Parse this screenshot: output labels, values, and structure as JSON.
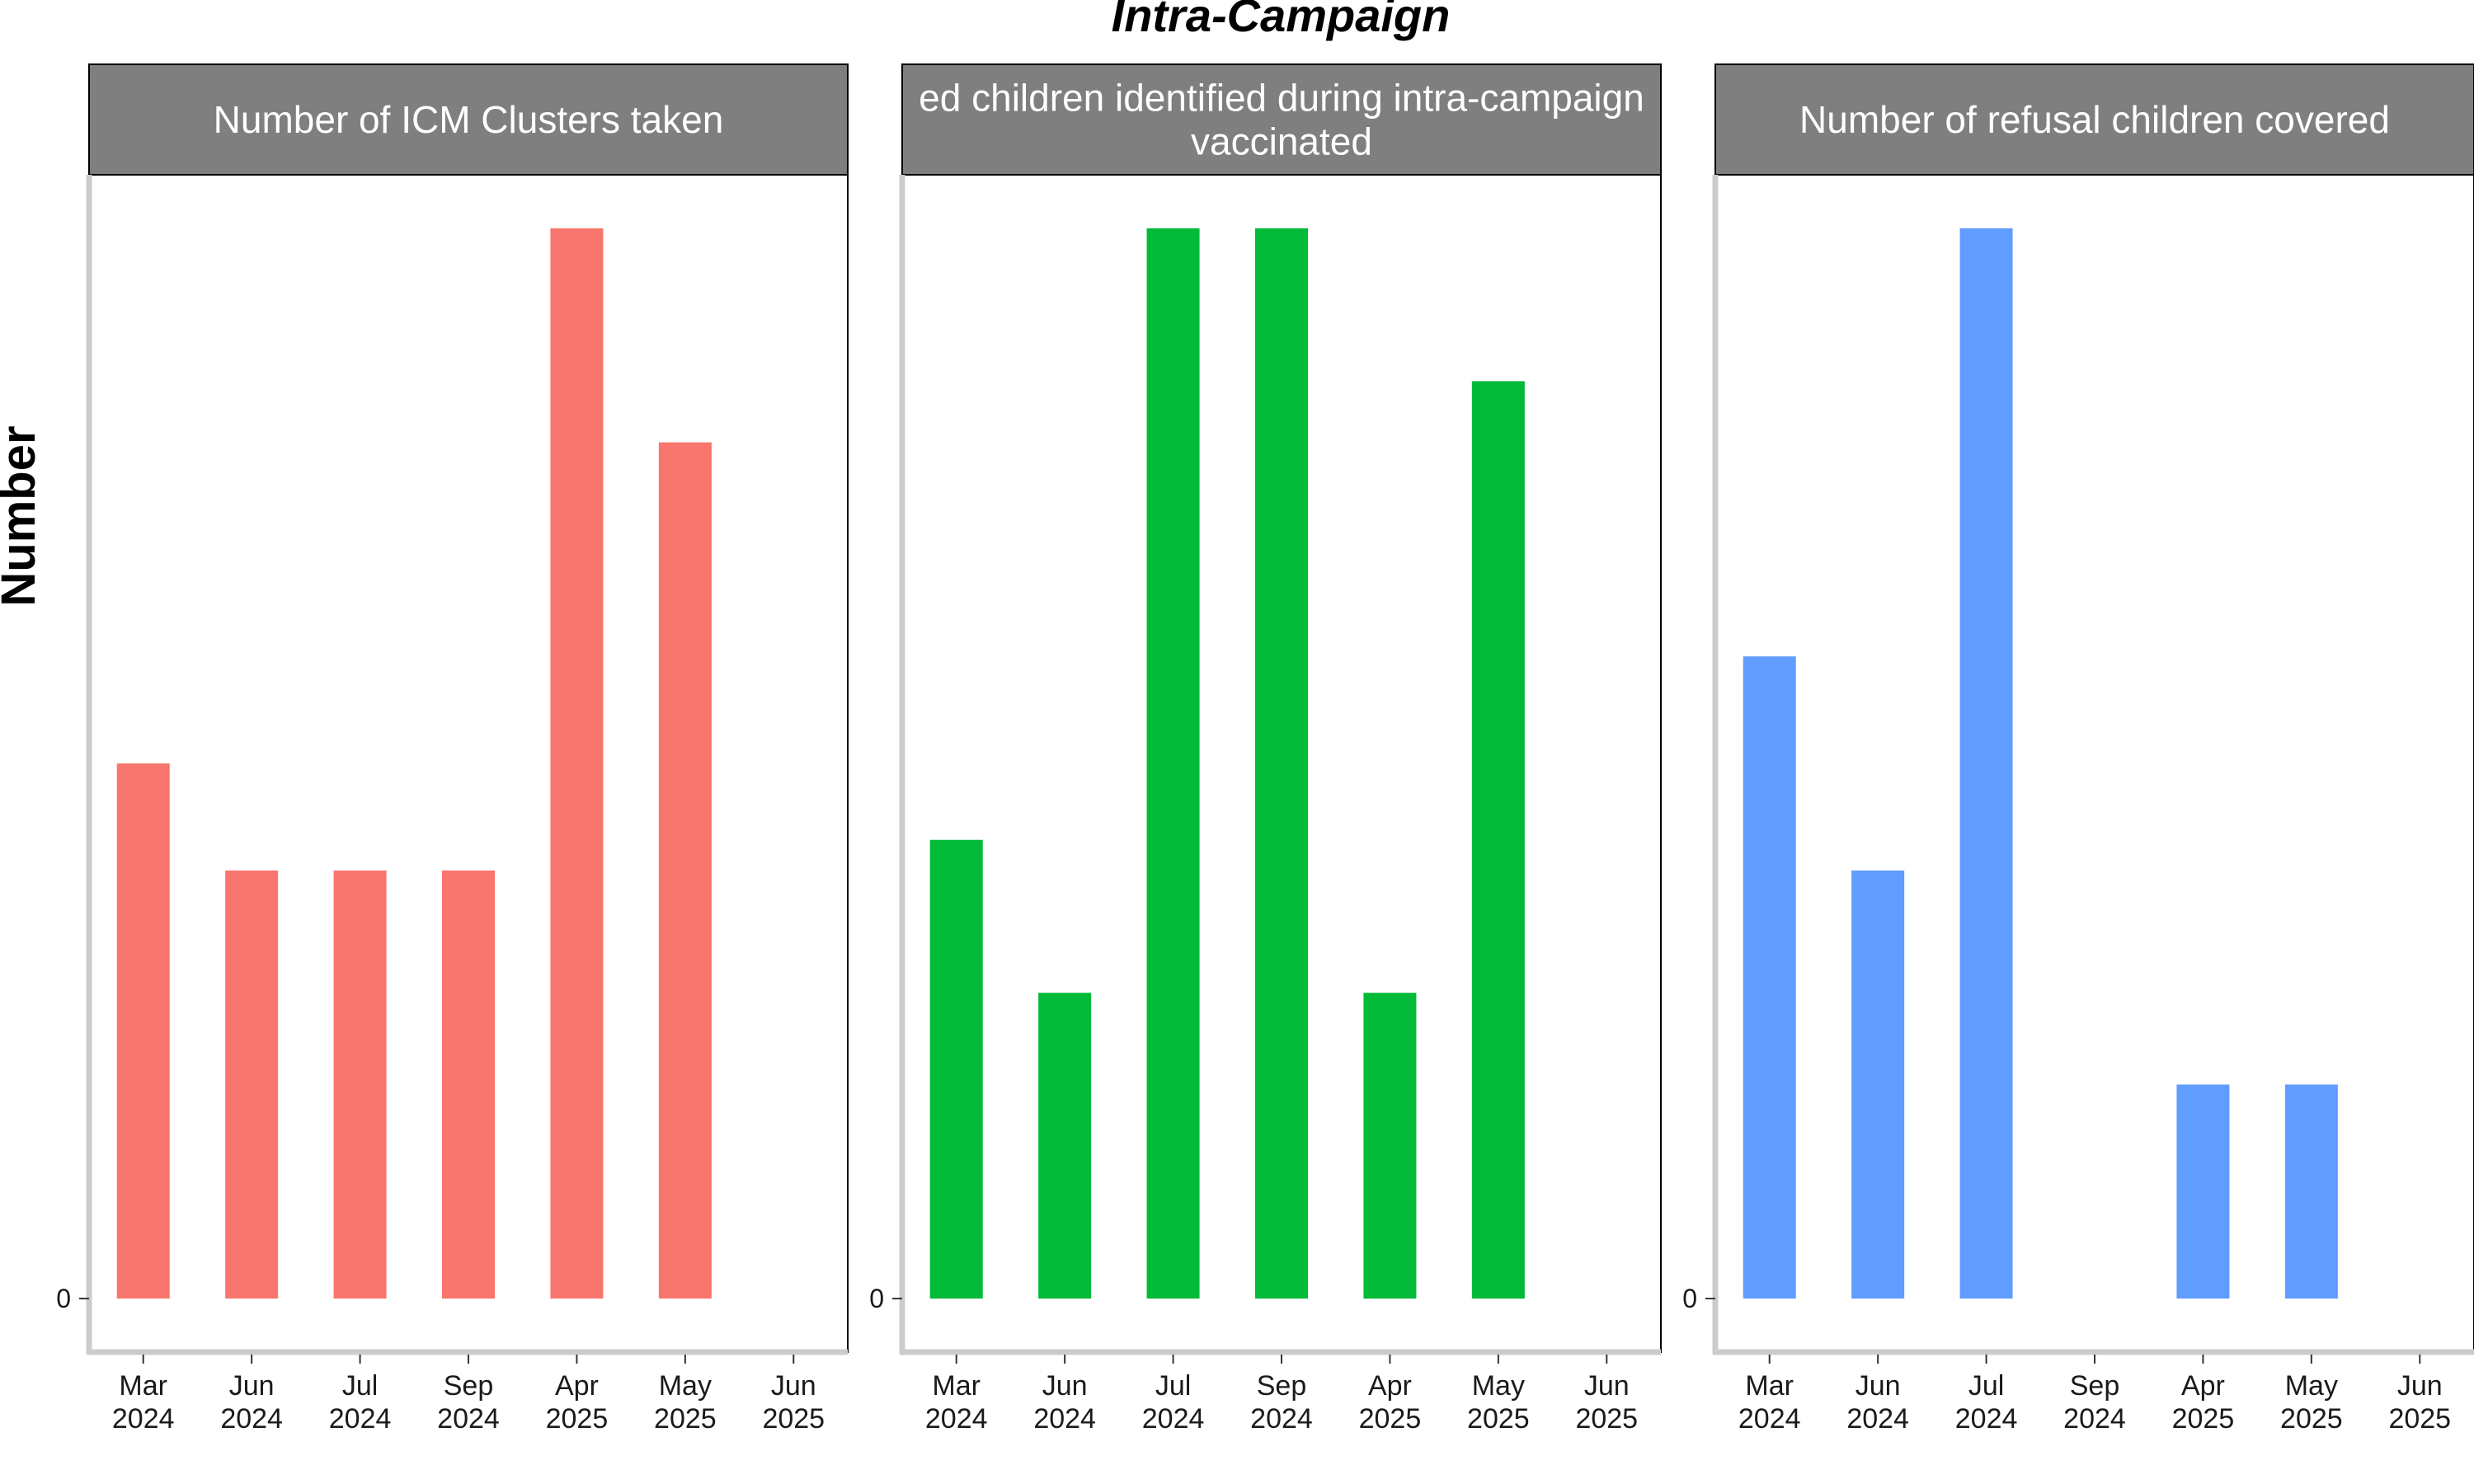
{
  "title": "Intra-Campaign",
  "ylabel": "Number",
  "colors": {
    "strip": "#7f7f7f",
    "axis": "#cccccc",
    "tick": "#333333"
  },
  "chart_data": [
    {
      "type": "bar",
      "title": "Number of ICM Clusters taken",
      "title_lines": [
        "Number of ICM Clusters taken"
      ],
      "categories": [
        "Mar 2024",
        "Jun 2024",
        "Jul 2024",
        "Sep 2024",
        "Apr 2025",
        "May 2025",
        "Jun 2025"
      ],
      "category_lines": [
        [
          "Mar",
          "2024"
        ],
        [
          "Jun",
          "2024"
        ],
        [
          "Jul",
          "2024"
        ],
        [
          "Sep",
          "2024"
        ],
        [
          "Apr",
          "2025"
        ],
        [
          "May",
          "2025"
        ],
        [
          "Jun",
          "2025"
        ]
      ],
      "values": [
        50,
        40,
        40,
        40,
        100,
        80,
        null
      ],
      "ylim": [
        -5,
        105
      ],
      "yticks": [
        0
      ],
      "ytick_labels": [
        "0"
      ],
      "color": "#f8766d"
    },
    {
      "type": "bar",
      "title": "ed children identified during intra-campaign vaccinated",
      "title_lines": [
        "ed children identified during intra-campaign",
        "vaccinated"
      ],
      "categories": [
        "Mar 2024",
        "Jun 2024",
        "Jul 2024",
        "Sep 2024",
        "Apr 2025",
        "May 2025",
        "Jun 2025"
      ],
      "category_lines": [
        [
          "Mar",
          "2024"
        ],
        [
          "Jun",
          "2024"
        ],
        [
          "Jul",
          "2024"
        ],
        [
          "Sep",
          "2024"
        ],
        [
          "Apr",
          "2025"
        ],
        [
          "May",
          "2025"
        ],
        [
          "Jun",
          "2025"
        ]
      ],
      "values": [
        30,
        20,
        70,
        70,
        20,
        60,
        null
      ],
      "ylim": [
        -3.5,
        73.5
      ],
      "yticks": [
        0
      ],
      "ytick_labels": [
        "0"
      ],
      "color": "#00ba38"
    },
    {
      "type": "bar",
      "title": "Number of refusal children covered",
      "title_lines": [
        "Number of refusal children covered"
      ],
      "categories": [
        "Mar 2024",
        "Jun 2024",
        "Jul 2024",
        "Sep 2024",
        "Apr 2025",
        "May 2025",
        "Jun 2025"
      ],
      "category_lines": [
        [
          "Mar",
          "2024"
        ],
        [
          "Jun",
          "2024"
        ],
        [
          "Jul",
          "2024"
        ],
        [
          "Sep",
          "2024"
        ],
        [
          "Apr",
          "2025"
        ],
        [
          "May",
          "2025"
        ],
        [
          "Jun",
          "2025"
        ]
      ],
      "values": [
        6,
        4,
        10,
        null,
        2,
        2,
        null
      ],
      "ylim": [
        -0.5,
        10.5
      ],
      "yticks": [
        0
      ],
      "ytick_labels": [
        "0"
      ],
      "color": "#619cff"
    }
  ]
}
